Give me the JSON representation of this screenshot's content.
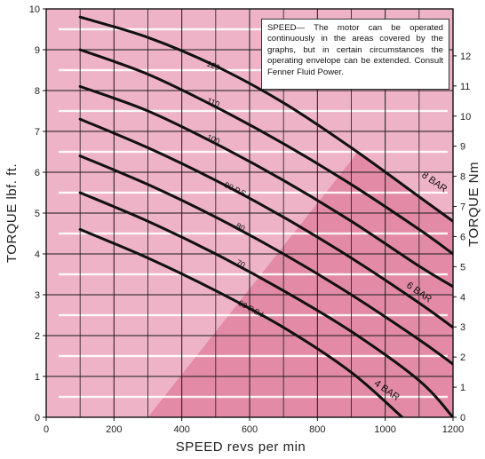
{
  "chart_data": {
    "type": "line",
    "title": "",
    "xlabel": "SPEED revs per min",
    "ylabel": "TORQUE lbf. ft.",
    "ylabel_right": "TORQUE Nm",
    "xlim": [
      0,
      1200
    ],
    "ylim": [
      0,
      10
    ],
    "ylim_right": [
      0,
      13.56
    ],
    "x_ticks": [
      0,
      200,
      400,
      600,
      800,
      1000,
      1200
    ],
    "y_ticks": [
      0,
      1,
      2,
      3,
      4,
      5,
      6,
      7,
      8,
      9,
      10
    ],
    "y_ticks_right": [
      0,
      1,
      2,
      3,
      4,
      5,
      6,
      7,
      8,
      9,
      10,
      11,
      12
    ],
    "grid": true,
    "note": "SPEED— The motor can be operated continuously in the areas covered by the graphs, but in certain circumstances the operating envelope can be extended. Consult Fenner Fluid Power.",
    "regions": [
      {
        "name": "4 BAR",
        "boundary": [
          [
            0,
            10
          ],
          [
            1200,
            10
          ],
          [
            1200,
            0
          ],
          [
            0,
            0
          ]
        ]
      },
      {
        "name": "6 BAR",
        "boundary": [
          [
            270,
            10
          ],
          [
            1200,
            10
          ],
          [
            1200,
            0
          ],
          [
            0,
            0
          ],
          [
            0,
            10
          ]
        ]
      },
      {
        "name": "8 BAR",
        "boundary": [
          [
            300,
            0
          ],
          [
            1200,
            0
          ],
          [
            1200,
            4.8
          ],
          [
            920,
            6.5
          ]
        ]
      }
    ],
    "region_labels": [
      {
        "text": "8 BAR",
        "x": 1140,
        "y": 5.7
      },
      {
        "text": "6 BAR",
        "x": 1095,
        "y": 3.0
      },
      {
        "text": "4 BAR",
        "x": 1000,
        "y": 0.6
      }
    ],
    "series": [
      {
        "name": "120",
        "x": [
          100,
          300,
          500,
          700,
          900,
          1100,
          1200
        ],
        "y": [
          9.8,
          9.3,
          8.6,
          7.7,
          6.6,
          5.4,
          4.8
        ]
      },
      {
        "name": "110",
        "x": [
          100,
          300,
          500,
          700,
          900,
          1100,
          1200
        ],
        "y": [
          9.0,
          8.4,
          7.6,
          6.7,
          5.7,
          4.6,
          4.0
        ]
      },
      {
        "name": "100",
        "x": [
          100,
          300,
          500,
          700,
          900,
          1100,
          1200
        ],
        "y": [
          8.1,
          7.5,
          6.7,
          5.8,
          4.8,
          3.7,
          3.2
        ]
      },
      {
        "name": "90 P.S.I",
        "x": [
          100,
          300,
          500,
          700,
          900,
          1100,
          1200
        ],
        "y": [
          7.3,
          6.6,
          5.8,
          4.9,
          3.9,
          2.8,
          2.2
        ]
      },
      {
        "name": "80",
        "x": [
          100,
          300,
          500,
          700,
          900,
          1100,
          1200
        ],
        "y": [
          6.4,
          5.7,
          4.9,
          4.0,
          3.0,
          1.9,
          1.3
        ]
      },
      {
        "name": "70",
        "x": [
          100,
          300,
          500,
          700,
          900,
          1100,
          1200
        ],
        "y": [
          5.5,
          4.8,
          4.0,
          3.1,
          2.1,
          0.9,
          0.0
        ]
      },
      {
        "name": "60 P.S.I",
        "x": [
          100,
          300,
          500,
          700,
          900,
          1050
        ],
        "y": [
          4.6,
          3.9,
          3.1,
          2.2,
          1.1,
          0.0
        ]
      }
    ],
    "curve_labels": [
      {
        "text": "120",
        "x": 490,
        "y": 8.55,
        "angle": -22
      },
      {
        "text": "110",
        "x": 490,
        "y": 7.65,
        "angle": -22
      },
      {
        "text": "100",
        "x": 490,
        "y": 6.75,
        "angle": -23
      },
      {
        "text": "90 P.S.I",
        "x": 560,
        "y": 5.5,
        "angle": -26
      },
      {
        "text": "80",
        "x": 570,
        "y": 4.6,
        "angle": -26
      },
      {
        "text": "70",
        "x": 570,
        "y": 3.7,
        "angle": -27
      },
      {
        "text": "60 P.S.I",
        "x": 600,
        "y": 2.6,
        "angle": -28
      }
    ],
    "colors": {
      "region_4bar": "#f8dde6",
      "region_6bar": "#eeb3c6",
      "region_8bar": "#e28aa6",
      "grid": "#1a1a1a",
      "curve": "#111111",
      "band": "#ffffff"
    }
  }
}
